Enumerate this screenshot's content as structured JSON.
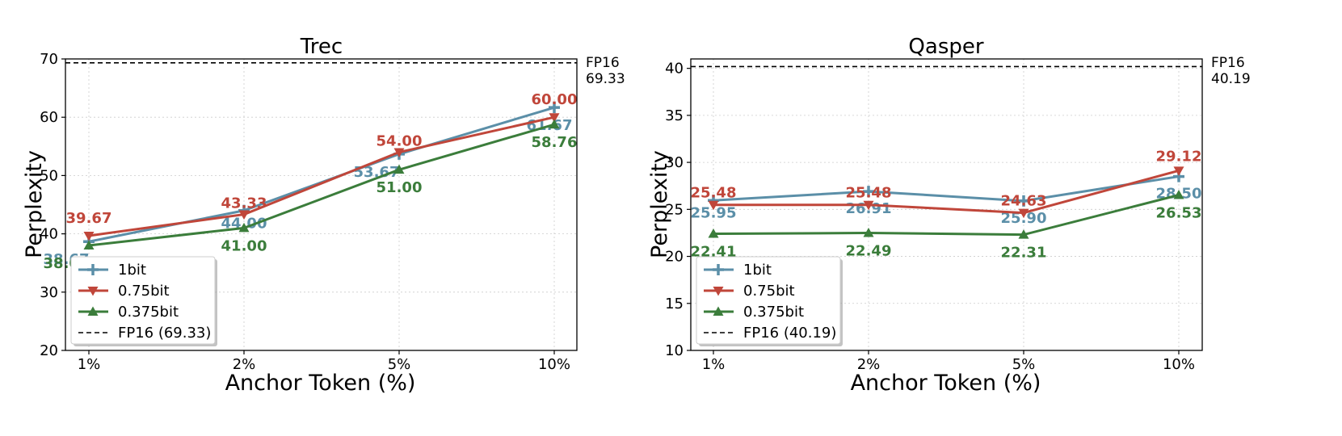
{
  "chart_data": [
    {
      "type": "line",
      "title": "Trec",
      "xlabel": "Anchor Token (%)",
      "ylabel": "Perplexity",
      "categories": [
        "1%",
        "2%",
        "5%",
        "10%"
      ],
      "ylim": [
        20,
        70
      ],
      "yticks": [
        20,
        30,
        40,
        50,
        60,
        70
      ],
      "grid": true,
      "legend_position": "lower-left",
      "series": [
        {
          "name": "1bit",
          "marker": "plus",
          "color": "#5b8fa8",
          "values": [
            38.67,
            44.0,
            53.67,
            61.67
          ],
          "labels": [
            "38.67",
            "44.00",
            "53.67",
            "61.67"
          ]
        },
        {
          "name": "0.75bit",
          "marker": "triangle-down",
          "color": "#c0463a",
          "values": [
            39.67,
            43.33,
            54.0,
            60.0
          ],
          "labels": [
            "39.67",
            "43.33",
            "54.00",
            "60.00"
          ]
        },
        {
          "name": "0.375bit",
          "marker": "triangle-up",
          "color": "#3b7d3b",
          "values": [
            38.0,
            41.0,
            51.0,
            58.76
          ],
          "labels": [
            "38.00",
            "41.00",
            "51.00",
            "58.76"
          ]
        }
      ],
      "reference": {
        "name": "FP16 (69.33)",
        "value": 69.33,
        "label_line1": "FP16",
        "label_line2": "69.33"
      }
    },
    {
      "type": "line",
      "title": "Qasper",
      "xlabel": "Anchor Token (%)",
      "ylabel": "Perplexity",
      "categories": [
        "1%",
        "2%",
        "5%",
        "10%"
      ],
      "ylim": [
        10,
        41
      ],
      "yticks": [
        10,
        15,
        20,
        25,
        30,
        35,
        40
      ],
      "grid": true,
      "legend_position": "lower-left",
      "series": [
        {
          "name": "1bit",
          "marker": "plus",
          "color": "#5b8fa8",
          "values": [
            25.95,
            26.91,
            25.9,
            28.5
          ],
          "labels": [
            "25.95",
            "26.91",
            "25.90",
            "28.50"
          ]
        },
        {
          "name": "0.75bit",
          "marker": "triangle-down",
          "color": "#c0463a",
          "values": [
            25.48,
            25.48,
            24.63,
            29.12
          ],
          "labels": [
            "25.48",
            "25.48",
            "24.63",
            "29.12"
          ]
        },
        {
          "name": "0.375bit",
          "marker": "triangle-up",
          "color": "#3b7d3b",
          "values": [
            22.41,
            22.49,
            22.31,
            26.53
          ],
          "labels": [
            "22.41",
            "22.49",
            "22.31",
            "26.53"
          ]
        }
      ],
      "reference": {
        "name": "FP16 (40.19)",
        "value": 40.19,
        "label_line1": "FP16",
        "label_line2": "40.19"
      }
    }
  ]
}
